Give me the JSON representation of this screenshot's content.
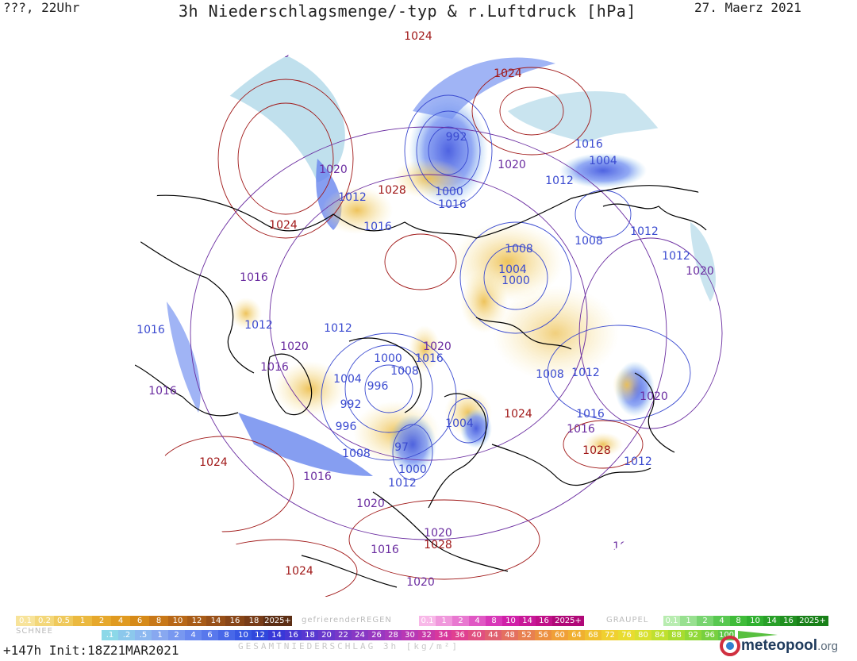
{
  "header": {
    "left": "???, 22Uhr",
    "title": "3h Niederschlagsmenge/-typ & r.Luftdruck [hPa]",
    "date": "27. Maerz 2021"
  },
  "isobars": [
    {
      "text": "1024",
      "color": "high"
    },
    {
      "text": "1024",
      "color": "high"
    },
    {
      "text": "1020",
      "color": "mid"
    },
    {
      "text": "992",
      "color": "low"
    },
    {
      "text": "1016",
      "color": "low"
    },
    {
      "text": "1004",
      "color": "low"
    },
    {
      "text": "1020",
      "color": "mid"
    },
    {
      "text": "1012",
      "color": "low"
    },
    {
      "text": "1000",
      "color": "low"
    },
    {
      "text": "1016",
      "color": "low"
    },
    {
      "text": "1028",
      "color": "high"
    },
    {
      "text": "1012",
      "color": "low"
    },
    {
      "text": "1020",
      "color": "mid"
    },
    {
      "text": "1024",
      "color": "high"
    },
    {
      "text": "1016",
      "color": "low"
    },
    {
      "text": "1008",
      "color": "low"
    },
    {
      "text": "1012",
      "color": "low"
    },
    {
      "text": "1012",
      "color": "low"
    },
    {
      "text": "1008",
      "color": "low"
    },
    {
      "text": "1004",
      "color": "low"
    },
    {
      "text": "1000",
      "color": "low"
    },
    {
      "text": "1020",
      "color": "mid"
    },
    {
      "text": "1016",
      "color": "mid"
    },
    {
      "text": "1012",
      "color": "low"
    },
    {
      "text": "1016",
      "color": "low"
    },
    {
      "text": "1012",
      "color": "low"
    },
    {
      "text": "1020",
      "color": "mid"
    },
    {
      "text": "1016",
      "color": "mid"
    },
    {
      "text": "1000",
      "color": "low"
    },
    {
      "text": "1008",
      "color": "low"
    },
    {
      "text": "1020",
      "color": "mid"
    },
    {
      "text": "1016",
      "color": "low"
    },
    {
      "text": "1008",
      "color": "low"
    },
    {
      "text": "1012",
      "color": "low"
    },
    {
      "text": "1004",
      "color": "low"
    },
    {
      "text": "996",
      "color": "low"
    },
    {
      "text": "1016",
      "color": "mid"
    },
    {
      "text": "1020",
      "color": "mid"
    },
    {
      "text": "992",
      "color": "low"
    },
    {
      "text": "996",
      "color": "low"
    },
    {
      "text": "1024",
      "color": "high"
    },
    {
      "text": "1016",
      "color": "low"
    },
    {
      "text": "1004",
      "color": "low"
    },
    {
      "text": "1016",
      "color": "mid"
    },
    {
      "text": "1008",
      "color": "low"
    },
    {
      "text": "97",
      "color": "low"
    },
    {
      "text": "1000",
      "color": "low"
    },
    {
      "text": "1020",
      "color": "mid"
    },
    {
      "text": "1028",
      "color": "high"
    },
    {
      "text": "1012",
      "color": "low"
    },
    {
      "text": "1024",
      "color": "high"
    },
    {
      "text": "1016",
      "color": "mid"
    },
    {
      "text": "1012",
      "color": "low"
    },
    {
      "text": "1020",
      "color": "mid"
    },
    {
      "text": "1028",
      "color": "high"
    },
    {
      "text": "1024",
      "color": "high"
    },
    {
      "text": "1016",
      "color": "mid"
    },
    {
      "text": "1016",
      "color": "mid"
    },
    {
      "text": "1024",
      "color": "high"
    },
    {
      "text": "1020",
      "color": "mid"
    },
    {
      "text": "1020",
      "color": "mid"
    }
  ],
  "label_colors": {
    "high": "#a01818",
    "mid": "#6a2ca0",
    "low": "#3a4ad0"
  },
  "legend": {
    "snow": {
      "label": "SCHNEE",
      "labels": [
        "0.1",
        "0.2",
        "0.5",
        "1",
        "2",
        "4",
        "6",
        "8",
        "10",
        "12",
        "14",
        "16",
        "18",
        "2025+"
      ],
      "colors": [
        "#f7e39a",
        "#f3d77a",
        "#efc95c",
        "#ebb940",
        "#e6a82c",
        "#e09a20",
        "#d68a18",
        "#c87818",
        "#b86818",
        "#a85c18",
        "#985018",
        "#884618",
        "#783c18",
        "#5c2e14"
      ]
    },
    "freezing_rain": {
      "label": "gefrierenderREGEN",
      "labels": [
        "0.1",
        "1",
        "2",
        "4",
        "8",
        "10",
        "14",
        "16",
        "2025+"
      ],
      "colors": [
        "#f8b8e8",
        "#f098dc",
        "#e878d0",
        "#e058c4",
        "#d838b8",
        "#d020a8",
        "#c81898",
        "#c01088",
        "#b00878"
      ]
    },
    "graupel": {
      "label": "GRAUPEL",
      "labels": [
        "0.1",
        "1",
        "2",
        "4",
        "8",
        "10",
        "14",
        "16",
        "2025+"
      ],
      "colors": [
        "#b8ecb0",
        "#98e090",
        "#78d470",
        "#58c850",
        "#40bc3a",
        "#30b030",
        "#28a028",
        "#209020",
        "#188018"
      ]
    },
    "total": {
      "labels": [
        ".1",
        ".2",
        ".5",
        "1",
        "2",
        "4",
        "6",
        "8",
        "10",
        "12",
        "14",
        "16",
        "18",
        "20",
        "22",
        "24",
        "26",
        "28",
        "30",
        "32",
        "34",
        "36",
        "40",
        "44",
        "48",
        "52",
        "56",
        "60",
        "64",
        "68",
        "72",
        "76",
        "80",
        "84",
        "88",
        "92",
        "96",
        "100"
      ],
      "colors": [
        "#8cd8e8",
        "#8cc8ec",
        "#8cb8f0",
        "#88a8f0",
        "#7898f0",
        "#6888f0",
        "#5878ec",
        "#4868e8",
        "#3858e4",
        "#3048dc",
        "#3838d8",
        "#4838d4",
        "#5838d0",
        "#6838cc",
        "#7838c8",
        "#8838c4",
        "#9838c0",
        "#a838bc",
        "#b838b4",
        "#c838a8",
        "#d8389c",
        "#e04090",
        "#e05080",
        "#e06070",
        "#e47060",
        "#e88050",
        "#ec9040",
        "#f0a038",
        "#f0b030",
        "#f0c030",
        "#f0d030",
        "#e8dc30",
        "#d8e030",
        "#c0e030",
        "#a8dc30",
        "#90d838",
        "#78d040",
        "#60c848"
      ]
    },
    "total_caption": "GESAMTNIEDERSCHLAG 3h [kg/m²]"
  },
  "footer": {
    "run": "+147h Init:18Z21MAR2021",
    "brand_name": "meteopool",
    "brand_tld": ".org"
  }
}
